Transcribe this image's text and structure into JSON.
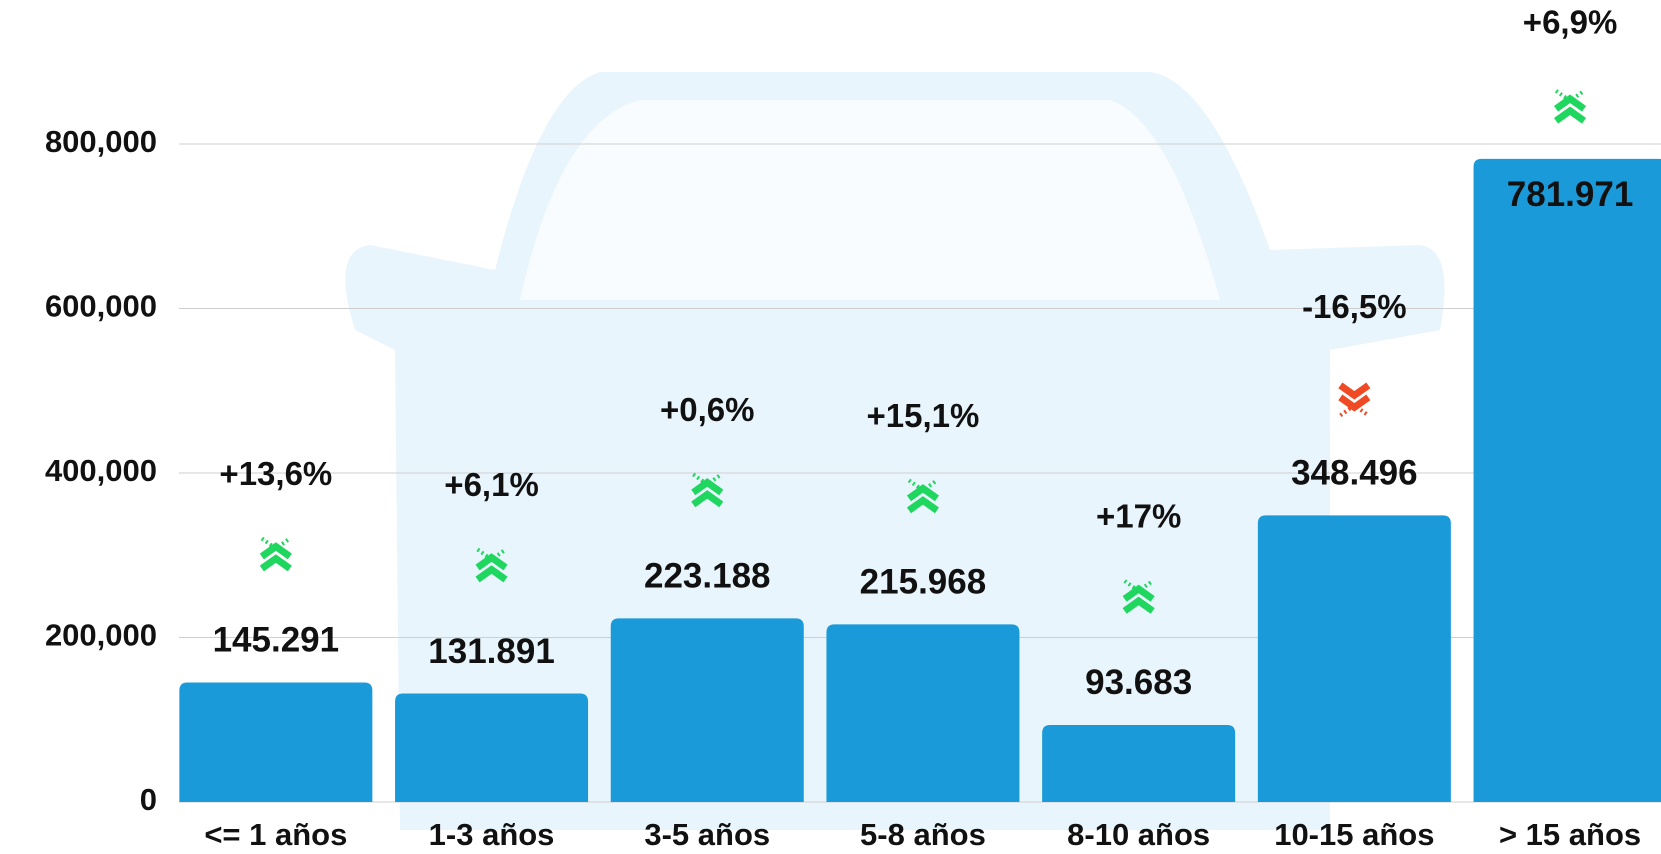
{
  "chart_data": {
    "type": "bar",
    "categories": [
      "<= 1 años",
      "1-3 años",
      "3-5 años",
      "5-8 años",
      "8-10 años",
      "10-15 años",
      "> 15 años"
    ],
    "values": [
      145291,
      131891,
      223188,
      215968,
      93683,
      348496,
      781971
    ],
    "value_labels": [
      "145.291",
      "131.891",
      "223.188",
      "215.968",
      "93.683",
      "348.496",
      "781.971"
    ],
    "changes": [
      13.6,
      6.1,
      0.6,
      15.1,
      17,
      -16.5,
      6.9
    ],
    "change_labels": [
      "+13,6%",
      "+6,1%",
      "+0,6%",
      "+15,1%",
      "+17%",
      "-16,5%",
      "+6,9%"
    ],
    "color": "#1a9ad9",
    "up_color": "#1fd65f",
    "down_color": "#f04a24",
    "ylim": [
      0,
      800000
    ],
    "yticks": [
      0,
      {
        "value": 200000,
        "label": "200,000"
      },
      {
        "value": 400000,
        "label": "400,000"
      },
      {
        "value": 600000,
        "label": "600,000"
      },
      {
        "value": 800000,
        "label": "800,000"
      }
    ],
    "grid": true
  }
}
